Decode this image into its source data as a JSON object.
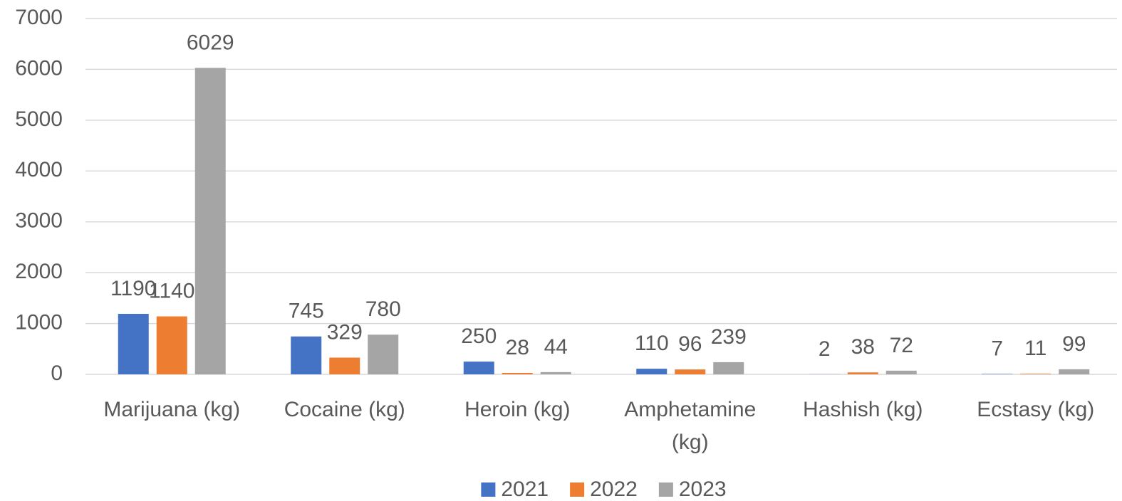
{
  "chart_data": {
    "type": "bar",
    "categories": [
      "Marijuana (kg)",
      "Cocaine (kg)",
      "Heroin (kg)",
      "Amphetamine (kg)",
      "Hashish (kg)",
      "Ecstasy (kg)"
    ],
    "series": [
      {
        "name": "2021",
        "color": "#4472c4",
        "values": [
          1190,
          745,
          250,
          110,
          2,
          7
        ]
      },
      {
        "name": "2022",
        "color": "#ed7d31",
        "values": [
          1140,
          329,
          28,
          96,
          38,
          11
        ]
      },
      {
        "name": "2023",
        "color": "#a5a5a5",
        "values": [
          6029,
          780,
          44,
          239,
          72,
          99
        ]
      }
    ],
    "ylim": [
      0,
      7000
    ],
    "yticks": [
      0,
      1000,
      2000,
      3000,
      4000,
      5000,
      6000,
      7000
    ],
    "grid": true,
    "legend": "bottom"
  }
}
